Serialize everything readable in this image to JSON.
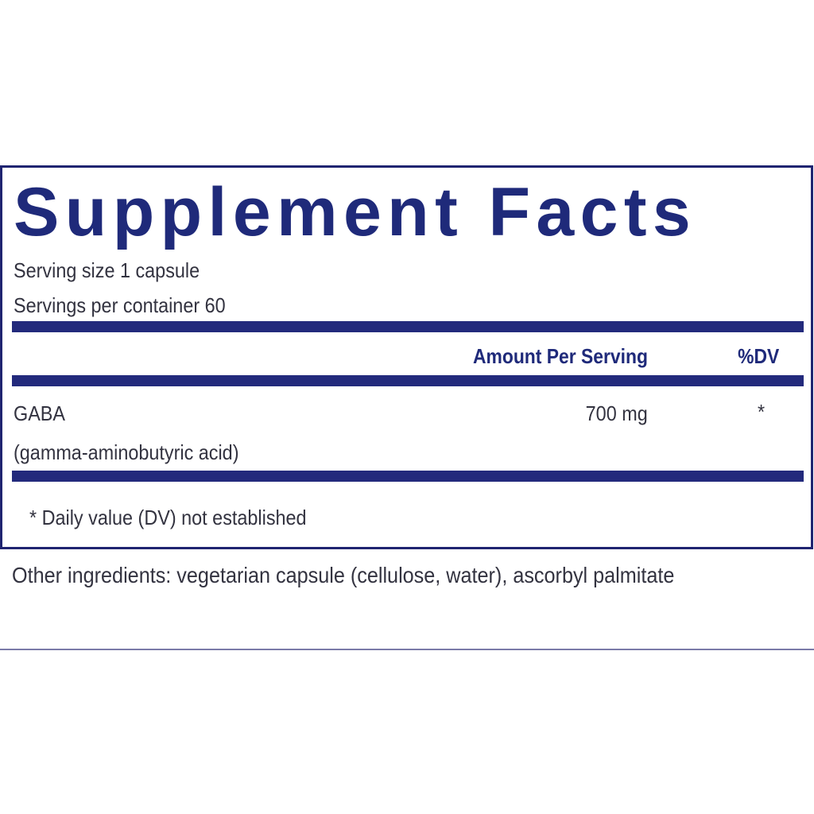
{
  "label": {
    "title": "Supplement Facts",
    "serving_size": "Serving size  1 capsule",
    "servings_per_container": "Servings per container  60",
    "columns": {
      "amount": "Amount Per Serving",
      "dv": "%DV"
    },
    "rows": [
      {
        "name": "GABA",
        "subname": "(gamma-aminobutyric acid)",
        "amount": "700 mg",
        "dv": "*"
      }
    ],
    "footnote": "* Daily value (DV) not established"
  },
  "other_ingredients": "Other ingredients: vegetarian capsule (cellulose, water), ascorbyl palmitate",
  "colors": {
    "brand": "#1f2a7a",
    "text": "#333340"
  }
}
